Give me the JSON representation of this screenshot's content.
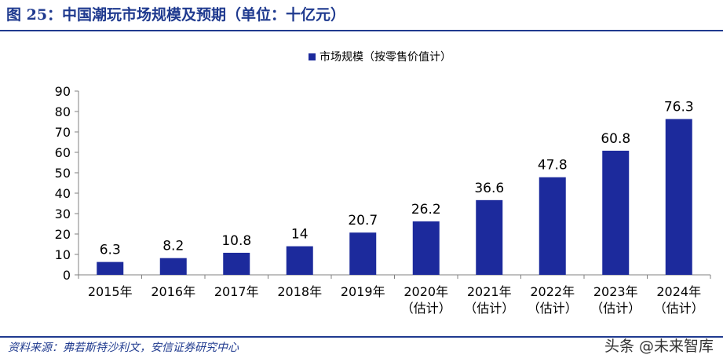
{
  "header": {
    "title": "图 25：中国潮玩市场规模及预期（单位：十亿元）"
  },
  "footer": {
    "source": "资料来源：弗若斯特沙利文，安信证券研究中心",
    "watermark": "头条 @未来智库"
  },
  "chart_data": {
    "type": "bar",
    "title": "",
    "xlabel": "",
    "ylabel": "",
    "ylim": [
      0,
      90
    ],
    "yticks": [
      0,
      10,
      20,
      30,
      40,
      50,
      60,
      70,
      80,
      90
    ],
    "grid": false,
    "legend_position": "top-center",
    "categories": [
      [
        "2015年"
      ],
      [
        "2016年"
      ],
      [
        "2017年"
      ],
      [
        "2018年"
      ],
      [
        "2019年"
      ],
      [
        "2020年",
        "（估计）"
      ],
      [
        "2021年",
        "（估计）"
      ],
      [
        "2022年",
        "（估计）"
      ],
      [
        "2023年",
        "（估计）"
      ],
      [
        "2024年",
        "（估计）"
      ]
    ],
    "series": [
      {
        "name": "市场规模（按零售价值计）",
        "color": "#1c2a9c",
        "values": [
          6.3,
          8.2,
          10.8,
          14,
          20.7,
          26.2,
          36.6,
          47.8,
          60.8,
          76.3
        ],
        "data_labels": [
          "6.3",
          "8.2",
          "10.8",
          "14",
          "20.7",
          "26.2",
          "36.6",
          "47.8",
          "60.8",
          "76.3"
        ]
      }
    ]
  }
}
